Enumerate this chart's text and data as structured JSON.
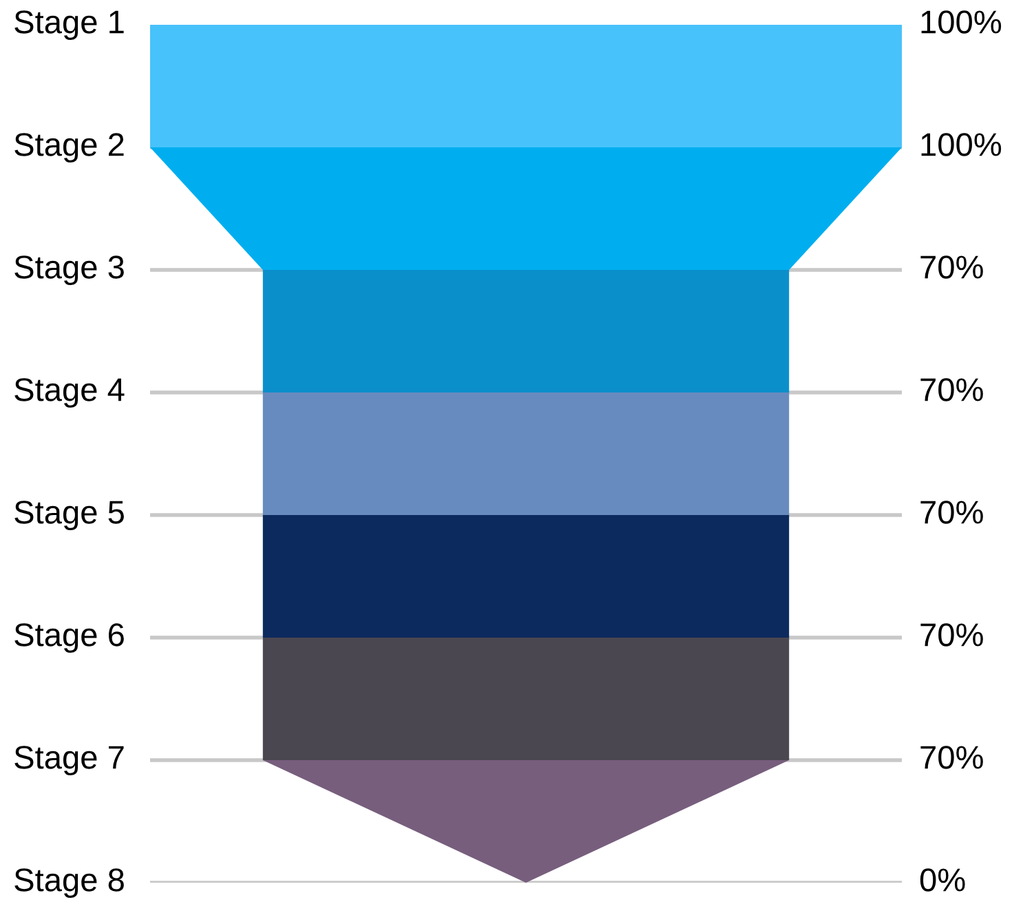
{
  "chart_data": {
    "type": "other",
    "categories": [
      "Stage 1",
      "Stage 2",
      "Stage 3",
      "Stage 4",
      "Stage 5",
      "Stage 6",
      "Stage 7",
      "Stage 8"
    ],
    "values": [
      100,
      100,
      70,
      70,
      70,
      70,
      70,
      0
    ],
    "value_labels": [
      "100%",
      "100%",
      "70%",
      "70%",
      "70%",
      "70%",
      "70%",
      "0%"
    ],
    "colors": [
      "#48c2fb",
      "#00aeef",
      "#0b8fcb",
      "#678bbf",
      "#0c2a5e",
      "#4a4751",
      "#775e7d",
      null
    ]
  }
}
